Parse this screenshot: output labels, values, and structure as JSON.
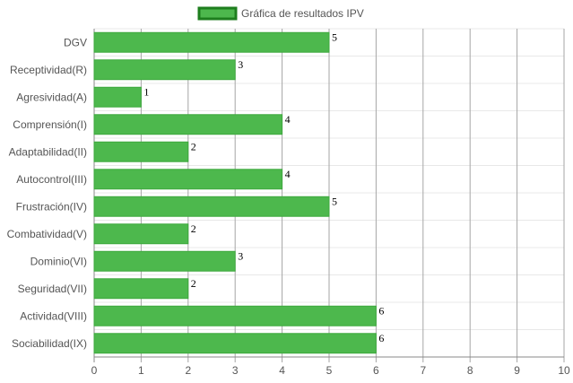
{
  "chart_data": {
    "type": "bar",
    "orientation": "horizontal",
    "categories": [
      "DGV",
      "Receptividad(R)",
      "Agresividad(A)",
      "Comprensión(I)",
      "Adaptabilidad(II)",
      "Autocontrol(III)",
      "Frustración(IV)",
      "Combatividad(V)",
      "Dominio(VI)",
      "Seguridad(VII)",
      "Actividad(VIII)",
      "Sociabilidad(IX)"
    ],
    "series": [
      {
        "name": "Gráfica de resultados IPV",
        "values": [
          5,
          3,
          1,
          4,
          2,
          4,
          5,
          2,
          3,
          2,
          6,
          6
        ]
      }
    ],
    "xlim": [
      0,
      10
    ],
    "xticks": [
      "0",
      "1",
      "2",
      "3",
      "4",
      "5",
      "6",
      "7",
      "8",
      "9",
      "10"
    ],
    "grid": true,
    "legend_position": "top",
    "data_labels": true,
    "colors": {
      "bar_fill": "#4db84d",
      "bar_stroke": "#3ea83e",
      "legend_stroke": "#1e7e1e",
      "grid_x": "#a6a6a6",
      "grid_y": "#e8e8e8"
    }
  }
}
